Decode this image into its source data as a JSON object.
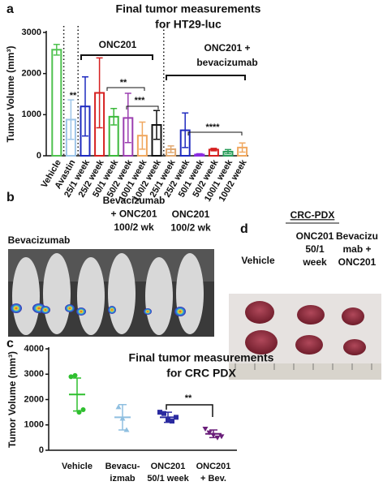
{
  "panels": {
    "a": "a",
    "b": "b",
    "c": "c",
    "d": "d"
  },
  "panel_b": {
    "labels": [
      [
        "Bevacizumab"
      ],
      [
        "Bevacizumab",
        "+ ONC201",
        "100/2 wk"
      ],
      [
        "ONC201",
        "100/2 wk"
      ]
    ]
  },
  "panel_d": {
    "title": "CRC-PDX",
    "labels": [
      [
        "Vehicle"
      ],
      [
        "ONC201",
        "50/1",
        "week"
      ],
      [
        "Bevacizu",
        "mab +",
        "ONC201"
      ]
    ]
  },
  "chart_data": [
    {
      "type": "bar",
      "title": [
        "Final tumor measurements",
        "for HT29-luc"
      ],
      "ylabel": "Tumor Volume (mm³)",
      "categories": [
        "Vehicle",
        "Avastin",
        "25/1 week",
        "25/2 week",
        "50/1 week",
        "50/2 week",
        "100/1 week",
        "100/2 week",
        "25/1 week",
        "25/2 week",
        "50/1 week",
        "50/2 week",
        "100/1 week",
        "100/2 week"
      ],
      "values": [
        2580,
        880,
        1200,
        1530,
        950,
        920,
        490,
        750,
        160,
        620,
        30,
        150,
        100,
        200
      ],
      "errors": [
        130,
        480,
        720,
        850,
        200,
        600,
        330,
        350,
        80,
        420,
        20,
        30,
        50,
        110
      ],
      "colors": [
        "#4fc24f",
        "#9ec5e8",
        "#1f2bbf",
        "#d62020",
        "#3cb83c",
        "#9b3fb0",
        "#f0a860",
        "#111111",
        "#e0a870",
        "#1f2bbf",
        "#8a2be2",
        "#d62020",
        "#2a9d5a",
        "#f0a860"
      ],
      "ylim": [
        0,
        3000
      ],
      "yticks": [
        0,
        1000,
        2000,
        3000
      ],
      "annotations": [
        "**",
        "ONC201",
        "**",
        "***",
        "ONC201 +",
        "bevacizumab",
        "****"
      ]
    },
    {
      "type": "dot",
      "title": [
        "Final tumor measurements",
        "for CRC PDX"
      ],
      "ylabel": "Tumor Volume (mm³)",
      "categories": [
        [
          "Vehicle"
        ],
        [
          "Bevacu-",
          "izmab"
        ],
        [
          "ONC201",
          "50/1 week"
        ],
        [
          "ONC201",
          "+ Bev."
        ]
      ],
      "points": [
        [
          2900,
          2950,
          1500,
          1600
        ],
        [
          1700,
          1250,
          800
        ],
        [
          1500,
          1450,
          1200,
          1150,
          1300
        ],
        [
          850,
          700,
          600,
          500,
          550
        ]
      ],
      "means": [
        2200,
        1300,
        1300,
        650
      ],
      "sd": [
        650,
        500,
        200,
        150
      ],
      "colors": [
        "#2fbf2f",
        "#8fbfe0",
        "#2a2aa0",
        "#6a1f7a"
      ],
      "ylim": [
        0,
        4000
      ],
      "yticks": [
        0,
        1000,
        2000,
        3000,
        4000
      ],
      "annotations": [
        "**"
      ]
    }
  ]
}
